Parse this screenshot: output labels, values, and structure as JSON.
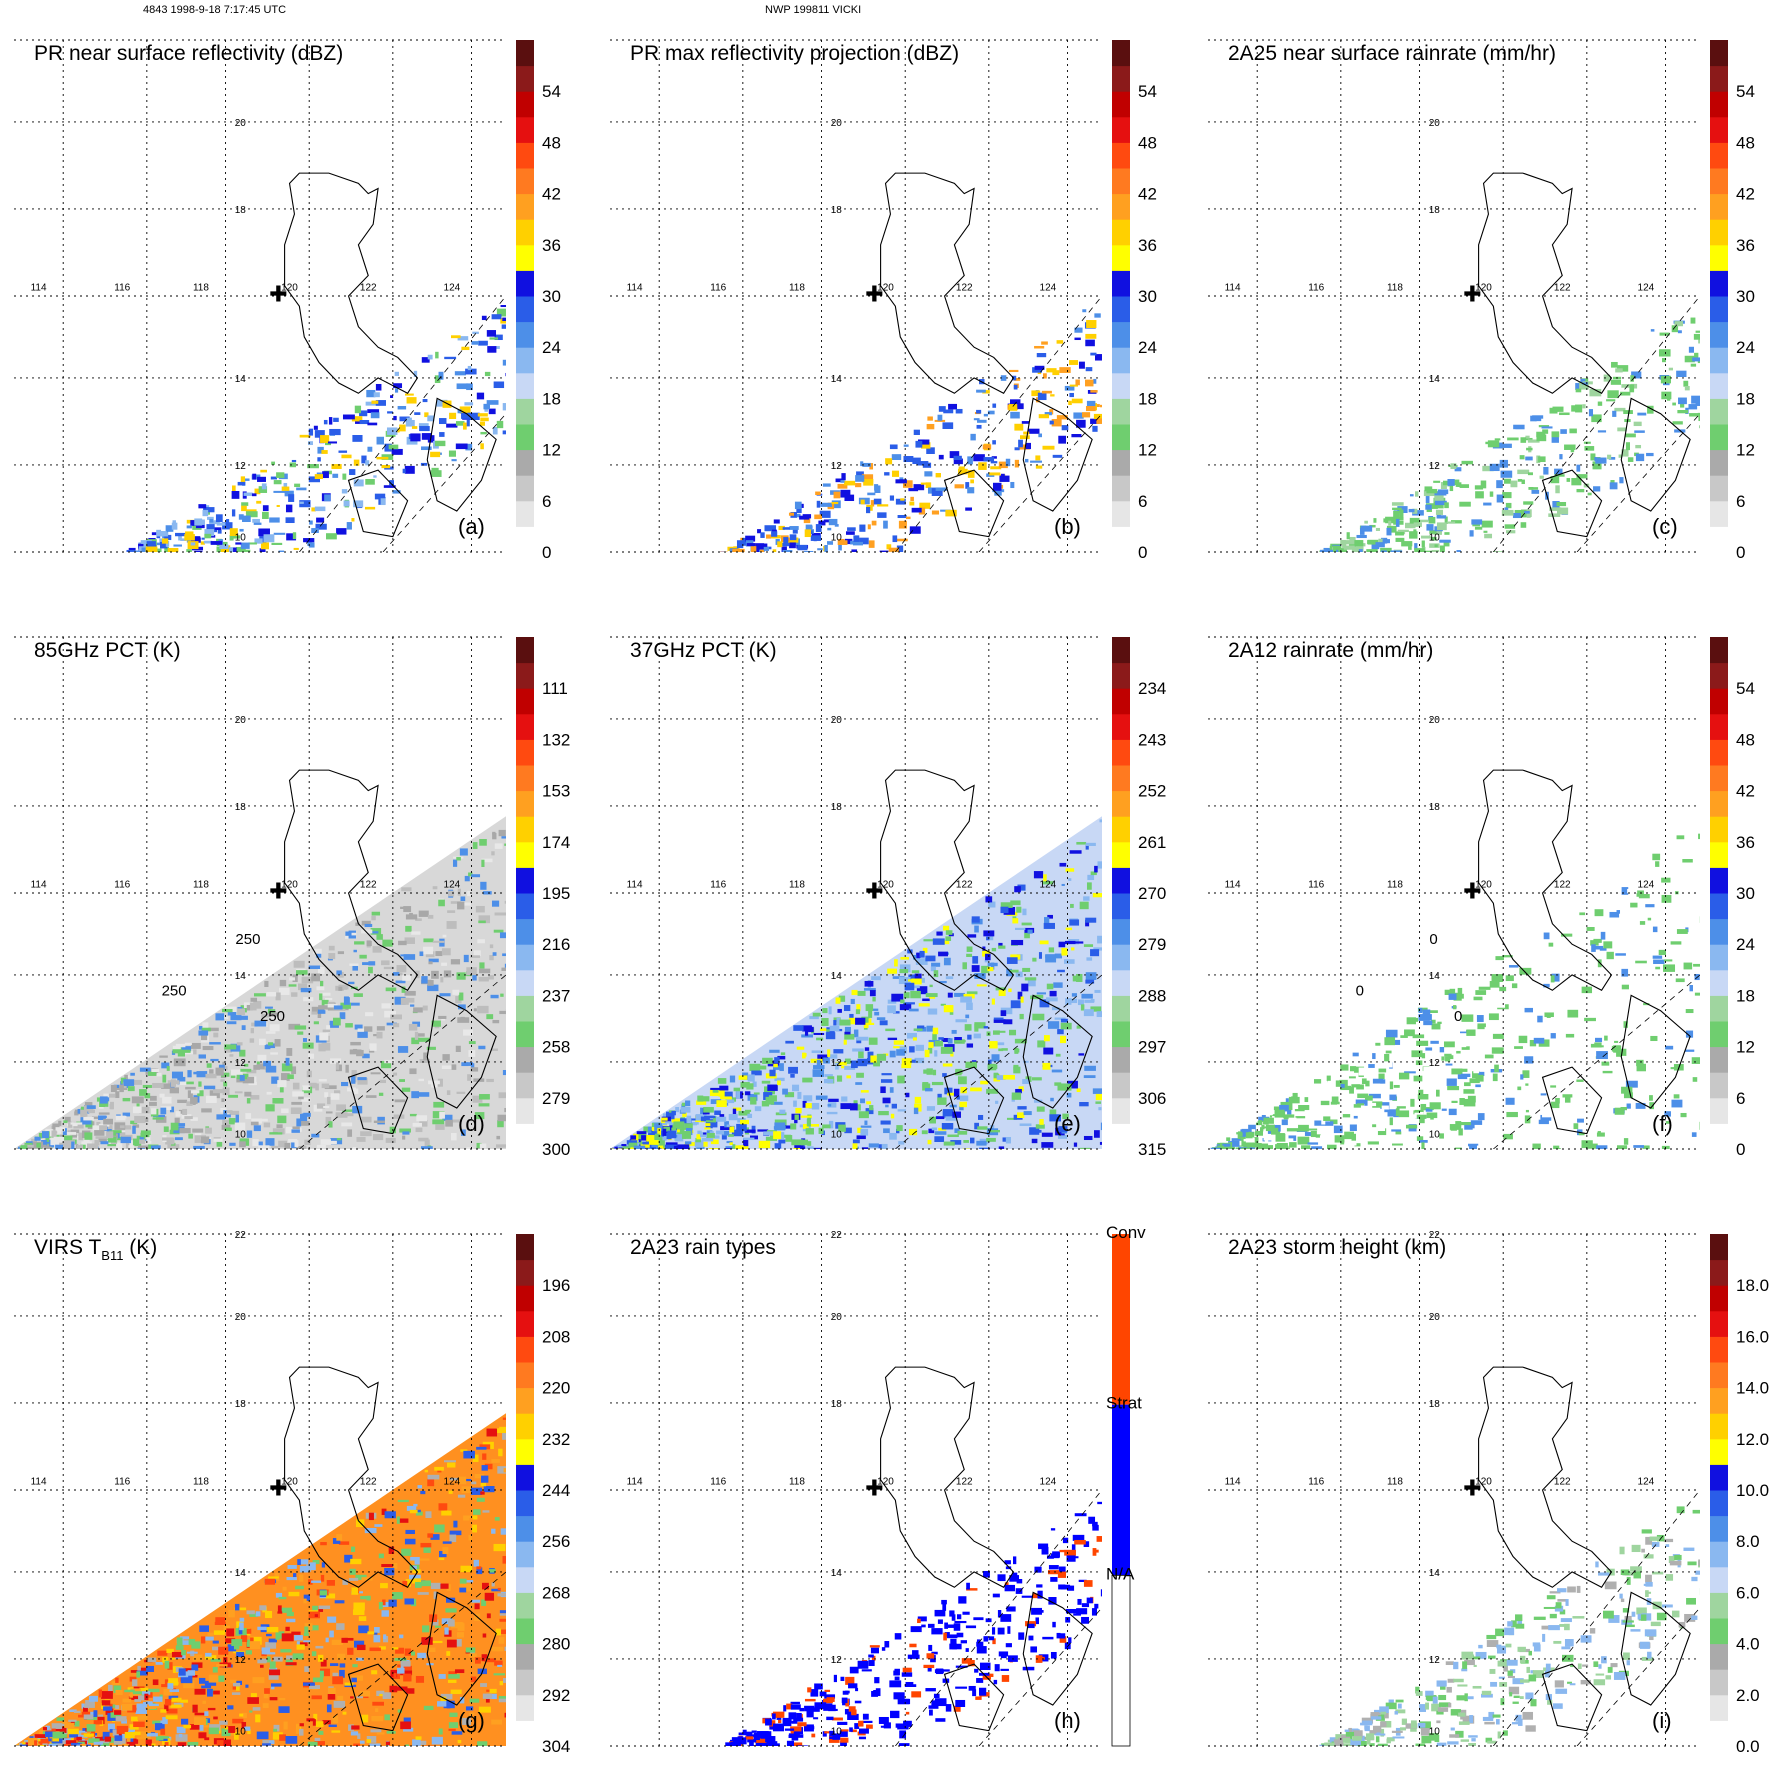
{
  "header": {
    "left": "4843 1998-9-18 7:17:45 UTC",
    "center": "NWP 199811 VICKI"
  },
  "map": {
    "lon_ticks": [
      "114",
      "116",
      "118",
      "120",
      "122",
      "124"
    ],
    "lat_ticks": [
      "22",
      "20",
      "18",
      "14",
      "12",
      "10"
    ]
  },
  "panels": [
    {
      "id": "a",
      "title": "PR near surface reflectivity (dBZ)",
      "label": "(a)",
      "colorbar": [
        "0",
        "6",
        "12",
        "18",
        "24",
        "30",
        "36",
        "42",
        "48",
        "54"
      ],
      "field": "swath"
    },
    {
      "id": "b",
      "title": "PR max reflectivity projection (dBZ)",
      "label": "(b)",
      "colorbar": [
        "0",
        "6",
        "12",
        "18",
        "24",
        "30",
        "36",
        "42",
        "48",
        "54"
      ],
      "field": "swath"
    },
    {
      "id": "c",
      "title": "2A25 near surface rainrate (mm/hr)",
      "label": "(c)",
      "colorbar": [
        "0",
        "6",
        "12",
        "18",
        "24",
        "30",
        "36",
        "42",
        "48",
        "54"
      ],
      "field": "swath"
    },
    {
      "id": "d",
      "title": "85GHz PCT (K)",
      "label": "(d)",
      "colorbar": [
        "300",
        "279",
        "258",
        "237",
        "216",
        "195",
        "174",
        "153",
        "132",
        "111"
      ],
      "field": "wide",
      "contour": "250"
    },
    {
      "id": "e",
      "title": "37GHz PCT (K)",
      "label": "(e)",
      "colorbar": [
        "315",
        "306",
        "297",
        "288",
        "279",
        "270",
        "261",
        "252",
        "243",
        "234"
      ],
      "field": "wide"
    },
    {
      "id": "f",
      "title": "2A12 rainrate (mm/hr)",
      "label": "(f)",
      "colorbar": [
        "0",
        "6",
        "12",
        "18",
        "24",
        "30",
        "36",
        "42",
        "48",
        "54"
      ],
      "field": "wide",
      "contour": "0"
    },
    {
      "id": "g",
      "title": "VIRS T",
      "title_sub": "B11",
      "title_tail": " (K)",
      "label": "(g)",
      "colorbar": [
        "304",
        "292",
        "280",
        "268",
        "256",
        "244",
        "232",
        "220",
        "208",
        "196"
      ],
      "field": "wide"
    },
    {
      "id": "h",
      "title": "2A23 rain types",
      "label": "(h)",
      "colorbar": [
        "N/A",
        "Strat",
        "Conv"
      ],
      "field": "swath"
    },
    {
      "id": "i",
      "title": "2A23 storm height (km)",
      "label": "(i)",
      "colorbar": [
        "0.0",
        "2.0",
        "4.0",
        "6.0",
        "8.0",
        "10.0",
        "12.0",
        "14.0",
        "16.0",
        "18.0"
      ],
      "field": "swath"
    }
  ],
  "colors": {
    "bar_steps": [
      "#ffffff",
      "#e6e6e6",
      "#c8c8c8",
      "#aaaaaa",
      "#6fce6f",
      "#9fd59f",
      "#c8d8f5",
      "#8ab8f0",
      "#4d8fe8",
      "#2a5de8",
      "#1010e0",
      "#ffff00",
      "#ffd000",
      "#ffa020",
      "#ff7a20",
      "#ff4a10",
      "#e51010",
      "#c00000",
      "#8b1a1a",
      "#5a0f0f"
    ],
    "rain_types": {
      "na": "#ffffff",
      "strat": "#0000ff",
      "conv": "#ff4500"
    }
  }
}
